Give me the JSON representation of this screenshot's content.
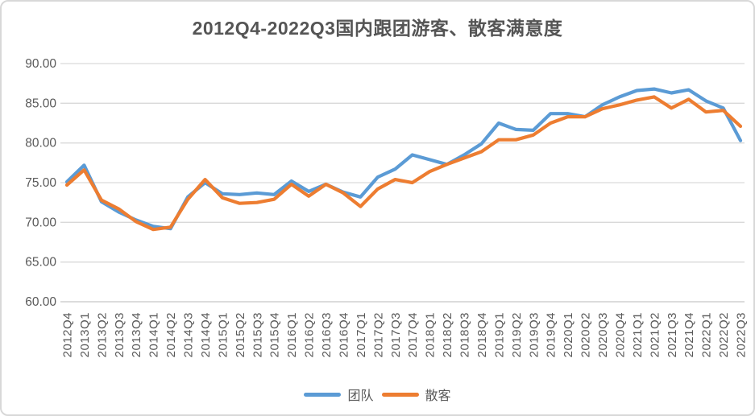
{
  "chart_data": {
    "type": "line",
    "title": "2012Q4-2022Q3国内跟团游客、散客满意度",
    "categories": [
      "2012Q4",
      "2013Q1",
      "2013Q2",
      "2013Q3",
      "2013Q4",
      "2014Q1",
      "2014Q2",
      "2014Q3",
      "2014Q4",
      "2015Q1",
      "2015Q2",
      "2015Q3",
      "2015Q4",
      "2016Q1",
      "2016Q2",
      "2016Q3",
      "2016Q4",
      "2017Q1",
      "2017Q2",
      "2017Q3",
      "2017Q4",
      "2018Q1",
      "2018Q2",
      "2018Q3",
      "2018Q4",
      "2019Q1",
      "2019Q2",
      "2019Q3",
      "2019Q4",
      "2020Q1",
      "2020Q2",
      "2020Q3",
      "2020Q4",
      "2021Q1",
      "2021Q2",
      "2021Q3",
      "2021Q4",
      "2022Q1",
      "2022Q2",
      "2022Q3"
    ],
    "series": [
      {
        "name": "团队",
        "color": "#5B9BD5",
        "values": [
          75.1,
          77.2,
          72.6,
          71.3,
          70.3,
          69.5,
          69.2,
          73.2,
          75.0,
          73.6,
          73.5,
          73.7,
          73.5,
          75.2,
          73.9,
          74.8,
          73.8,
          73.2,
          75.7,
          76.7,
          78.5,
          77.9,
          77.3,
          78.5,
          79.9,
          82.5,
          81.7,
          81.6,
          83.7,
          83.7,
          83.3,
          84.8,
          85.8,
          86.6,
          86.8,
          86.3,
          86.7,
          85.3,
          84.4,
          80.3
        ]
      },
      {
        "name": "散客",
        "color": "#ED7D31",
        "values": [
          74.7,
          76.6,
          72.8,
          71.7,
          70.1,
          69.1,
          69.4,
          72.9,
          75.4,
          73.1,
          72.4,
          72.5,
          72.9,
          74.8,
          73.3,
          74.8,
          73.7,
          72.0,
          74.2,
          75.4,
          75.0,
          76.4,
          77.3,
          78.1,
          78.9,
          80.4,
          80.4,
          81.0,
          82.5,
          83.3,
          83.3,
          84.3,
          84.8,
          85.4,
          85.8,
          84.4,
          85.5,
          83.9,
          84.1,
          82.1
        ]
      }
    ],
    "ylim": [
      60,
      90
    ],
    "yticks": [
      90,
      85,
      80,
      75,
      70,
      65,
      60
    ],
    "ytick_format": "2-decimals",
    "xlabel": "",
    "ylabel": "",
    "grid": "horizontal-only",
    "grid_color": "#d9d9d9",
    "axis_text_color": "#595959",
    "legend_position": "bottom",
    "legend": [
      {
        "label": "团队",
        "color": "#5B9BD5"
      },
      {
        "label": "散客",
        "color": "#ED7D31"
      }
    ]
  }
}
